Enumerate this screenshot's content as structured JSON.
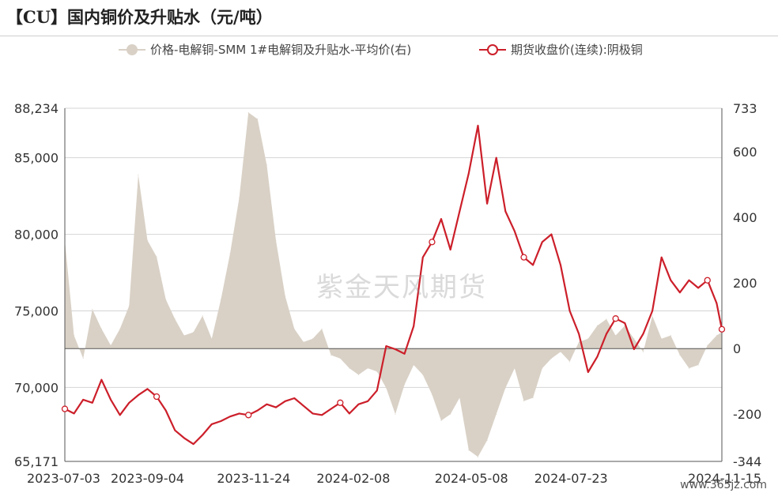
{
  "title": "【CU】国内铜价及升贴水（元/吨）",
  "watermark": "紫金天风期货",
  "source": "www.365jz.com",
  "colors": {
    "premium_area": "#d9d1c6",
    "futures_line": "#cc1f2a",
    "grid": "#d4d4d4",
    "axis": "#555555"
  },
  "chart_data": {
    "type": "line",
    "legend_placement": "top",
    "grid": true,
    "series": [
      {
        "name": "价格-电解铜-SMM 1#电解铜及升贴水-平均价(右)",
        "type": "area",
        "axis": "right",
        "points": [
          [
            "2023-07-03",
            330
          ],
          [
            "2023-07-10",
            40
          ],
          [
            "2023-07-17",
            -30
          ],
          [
            "2023-07-24",
            120
          ],
          [
            "2023-07-31",
            60
          ],
          [
            "2023-08-07",
            10
          ],
          [
            "2023-08-14",
            60
          ],
          [
            "2023-08-21",
            130
          ],
          [
            "2023-08-28",
            530
          ],
          [
            "2023-09-04",
            330
          ],
          [
            "2023-09-11",
            280
          ],
          [
            "2023-09-18",
            150
          ],
          [
            "2023-09-25",
            90
          ],
          [
            "2023-10-02",
            40
          ],
          [
            "2023-10-09",
            50
          ],
          [
            "2023-10-16",
            100
          ],
          [
            "2023-10-23",
            30
          ],
          [
            "2023-10-30",
            150
          ],
          [
            "2023-11-06",
            290
          ],
          [
            "2023-11-13",
            460
          ],
          [
            "2023-11-20",
            720
          ],
          [
            "2023-11-27",
            700
          ],
          [
            "2023-12-04",
            560
          ],
          [
            "2023-12-11",
            330
          ],
          [
            "2023-12-18",
            160
          ],
          [
            "2023-12-25",
            60
          ],
          [
            "2024-01-01",
            20
          ],
          [
            "2024-01-08",
            30
          ],
          [
            "2024-01-15",
            60
          ],
          [
            "2024-01-22",
            -20
          ],
          [
            "2024-01-29",
            -30
          ],
          [
            "2024-02-05",
            -60
          ],
          [
            "2024-02-12",
            -80
          ],
          [
            "2024-02-19",
            -60
          ],
          [
            "2024-02-26",
            -70
          ],
          [
            "2024-03-04",
            -120
          ],
          [
            "2024-03-11",
            -200
          ],
          [
            "2024-03-18",
            -110
          ],
          [
            "2024-03-25",
            -50
          ],
          [
            "2024-04-01",
            -80
          ],
          [
            "2024-04-08",
            -140
          ],
          [
            "2024-04-15",
            -220
          ],
          [
            "2024-04-22",
            -200
          ],
          [
            "2024-04-29",
            -150
          ],
          [
            "2024-05-06",
            -310
          ],
          [
            "2024-05-13",
            -330
          ],
          [
            "2024-05-20",
            -280
          ],
          [
            "2024-05-27",
            -200
          ],
          [
            "2024-06-03",
            -120
          ],
          [
            "2024-06-10",
            -60
          ],
          [
            "2024-06-17",
            -160
          ],
          [
            "2024-06-24",
            -150
          ],
          [
            "2024-07-01",
            -60
          ],
          [
            "2024-07-08",
            -30
          ],
          [
            "2024-07-15",
            -10
          ],
          [
            "2024-07-22",
            -40
          ],
          [
            "2024-07-29",
            20
          ],
          [
            "2024-08-05",
            30
          ],
          [
            "2024-08-12",
            70
          ],
          [
            "2024-08-19",
            90
          ],
          [
            "2024-08-26",
            40
          ],
          [
            "2024-09-02",
            70
          ],
          [
            "2024-09-09",
            30
          ],
          [
            "2024-09-16",
            -10
          ],
          [
            "2024-09-23",
            100
          ],
          [
            "2024-09-30",
            30
          ],
          [
            "2024-10-07",
            40
          ],
          [
            "2024-10-14",
            -20
          ],
          [
            "2024-10-21",
            -60
          ],
          [
            "2024-10-28",
            -50
          ],
          [
            "2024-11-04",
            10
          ],
          [
            "2024-11-11",
            40
          ],
          [
            "2024-11-15",
            50
          ]
        ]
      },
      {
        "name": "期货收盘价(连续):阴极铜",
        "type": "line",
        "axis": "left",
        "points": [
          [
            "2023-07-03",
            68600
          ],
          [
            "2023-07-10",
            68300
          ],
          [
            "2023-07-17",
            69200
          ],
          [
            "2023-07-24",
            69000
          ],
          [
            "2023-07-31",
            70500
          ],
          [
            "2023-08-07",
            69200
          ],
          [
            "2023-08-14",
            68200
          ],
          [
            "2023-08-21",
            69000
          ],
          [
            "2023-08-28",
            69500
          ],
          [
            "2023-09-04",
            69900
          ],
          [
            "2023-09-11",
            69400
          ],
          [
            "2023-09-18",
            68500
          ],
          [
            "2023-09-25",
            67200
          ],
          [
            "2023-10-02",
            66700
          ],
          [
            "2023-10-09",
            66300
          ],
          [
            "2023-10-16",
            66900
          ],
          [
            "2023-10-23",
            67600
          ],
          [
            "2023-10-30",
            67800
          ],
          [
            "2023-11-06",
            68100
          ],
          [
            "2023-11-13",
            68300
          ],
          [
            "2023-11-20",
            68200
          ],
          [
            "2023-11-27",
            68500
          ],
          [
            "2023-12-04",
            68900
          ],
          [
            "2023-12-11",
            68700
          ],
          [
            "2023-12-18",
            69100
          ],
          [
            "2023-12-25",
            69300
          ],
          [
            "2024-01-01",
            68800
          ],
          [
            "2024-01-08",
            68300
          ],
          [
            "2024-01-15",
            68200
          ],
          [
            "2024-01-22",
            68600
          ],
          [
            "2024-01-29",
            69000
          ],
          [
            "2024-02-05",
            68300
          ],
          [
            "2024-02-12",
            68900
          ],
          [
            "2024-02-19",
            69100
          ],
          [
            "2024-02-26",
            69800
          ],
          [
            "2024-03-04",
            72700
          ],
          [
            "2024-03-11",
            72500
          ],
          [
            "2024-03-18",
            72200
          ],
          [
            "2024-03-25",
            74000
          ],
          [
            "2024-04-01",
            78500
          ],
          [
            "2024-04-08",
            79500
          ],
          [
            "2024-04-15",
            81000
          ],
          [
            "2024-04-22",
            79000
          ],
          [
            "2024-04-29",
            81500
          ],
          [
            "2024-05-06",
            84000
          ],
          [
            "2024-05-13",
            87100
          ],
          [
            "2024-05-20",
            82000
          ],
          [
            "2024-05-27",
            85000
          ],
          [
            "2024-06-03",
            81500
          ],
          [
            "2024-06-10",
            80200
          ],
          [
            "2024-06-17",
            78500
          ],
          [
            "2024-06-24",
            78000
          ],
          [
            "2024-07-01",
            79500
          ],
          [
            "2024-07-08",
            80000
          ],
          [
            "2024-07-15",
            78000
          ],
          [
            "2024-07-22",
            75000
          ],
          [
            "2024-07-29",
            73500
          ],
          [
            "2024-08-05",
            71000
          ],
          [
            "2024-08-12",
            72000
          ],
          [
            "2024-08-19",
            73500
          ],
          [
            "2024-08-26",
            74500
          ],
          [
            "2024-09-02",
            74200
          ],
          [
            "2024-09-09",
            72500
          ],
          [
            "2024-09-16",
            73500
          ],
          [
            "2024-09-23",
            75000
          ],
          [
            "2024-09-30",
            78500
          ],
          [
            "2024-10-07",
            77000
          ],
          [
            "2024-10-14",
            76200
          ],
          [
            "2024-10-21",
            77000
          ],
          [
            "2024-10-28",
            76500
          ],
          [
            "2024-11-04",
            77000
          ],
          [
            "2024-11-11",
            75500
          ],
          [
            "2024-11-15",
            73800
          ]
        ]
      }
    ],
    "x_ticks": [
      "2023-07-03",
      "2023-09-04",
      "2023-11-24",
      "2024-02-08",
      "2024-05-08",
      "2024-07-23",
      "2024-11-15"
    ],
    "x_range": [
      "2023-07-03",
      "2024-11-15"
    ],
    "y_left": {
      "range": [
        65171,
        88234
      ],
      "ticks": [
        "88,234",
        "85,000",
        "80,000",
        "75,000",
        "70,000",
        "65,171"
      ],
      "tick_values": [
        88234,
        85000,
        80000,
        75000,
        70000,
        65171
      ]
    },
    "y_right": {
      "range": [
        -344,
        733
      ],
      "ticks": [
        "733",
        "600",
        "400",
        "200",
        "0",
        "-200",
        "-344"
      ],
      "tick_values": [
        733,
        600,
        400,
        200,
        0,
        -200,
        -344
      ]
    }
  }
}
